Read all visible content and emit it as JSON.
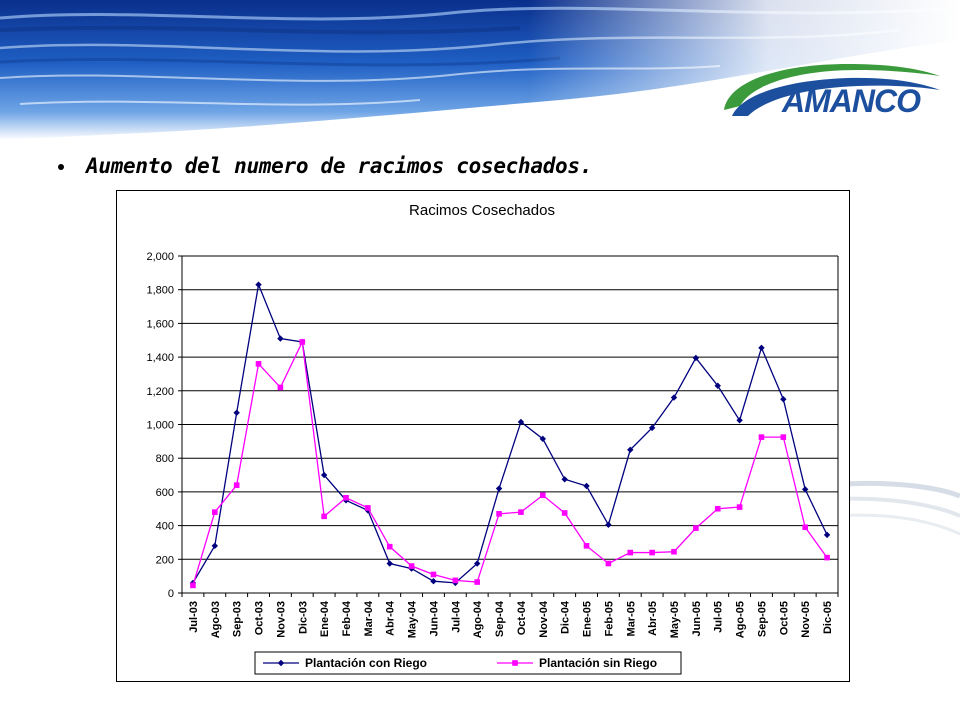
{
  "header": {
    "brand_name": "AMANCO"
  },
  "bullet": {
    "text": "Aumento del numero de racimos cosechados."
  },
  "colors": {
    "series_con_riego": "#00007f",
    "series_sin_riego": "#ff00ff",
    "brand_green": "#3a9a3c",
    "brand_blue": "#1d4f9f"
  },
  "chart_data": {
    "type": "line",
    "title": "Racimos Cosechados",
    "xlabel": "",
    "ylabel": "",
    "ylim": [
      0,
      2000
    ],
    "grid": true,
    "legend_position": "bottom",
    "yticks": [
      "0",
      "200",
      "400",
      "600",
      "800",
      "1,000",
      "1,200",
      "1,400",
      "1,600",
      "1,800",
      "2,000"
    ],
    "categories": [
      "Jul-03",
      "Ago-03",
      "Sep-03",
      "Oct-03",
      "Nov-03",
      "Dic-03",
      "Ene-04",
      "Feb-04",
      "Mar-04",
      "Abr-04",
      "May-04",
      "Jun-04",
      "Jul-04",
      "Ago-04",
      "Sep-04",
      "Oct-04",
      "Nov-04",
      "Dic-04",
      "Ene-05",
      "Feb-05",
      "Mar-05",
      "Abr-05",
      "May-05",
      "Jun-05",
      "Jul-05",
      "Ago-05",
      "Sep-05",
      "Oct-05",
      "Nov-05",
      "Dic-05"
    ],
    "series": [
      {
        "name": "Plantación con Riego",
        "color": "#00007f",
        "marker": "diamond",
        "values": [
          60,
          280,
          1070,
          1830,
          1510,
          1490,
          700,
          550,
          490,
          175,
          145,
          70,
          60,
          175,
          620,
          1015,
          915,
          675,
          635,
          405,
          850,
          980,
          1160,
          1395,
          1230,
          1025,
          1455,
          1150,
          615,
          345
        ]
      },
      {
        "name": "Plantación sin Riego",
        "color": "#ff00ff",
        "marker": "square",
        "values": [
          45,
          480,
          640,
          1360,
          1220,
          1490,
          455,
          565,
          505,
          275,
          160,
          110,
          75,
          65,
          470,
          480,
          580,
          475,
          280,
          175,
          240,
          240,
          245,
          385,
          500,
          510,
          925,
          925,
          390,
          210
        ]
      }
    ]
  }
}
